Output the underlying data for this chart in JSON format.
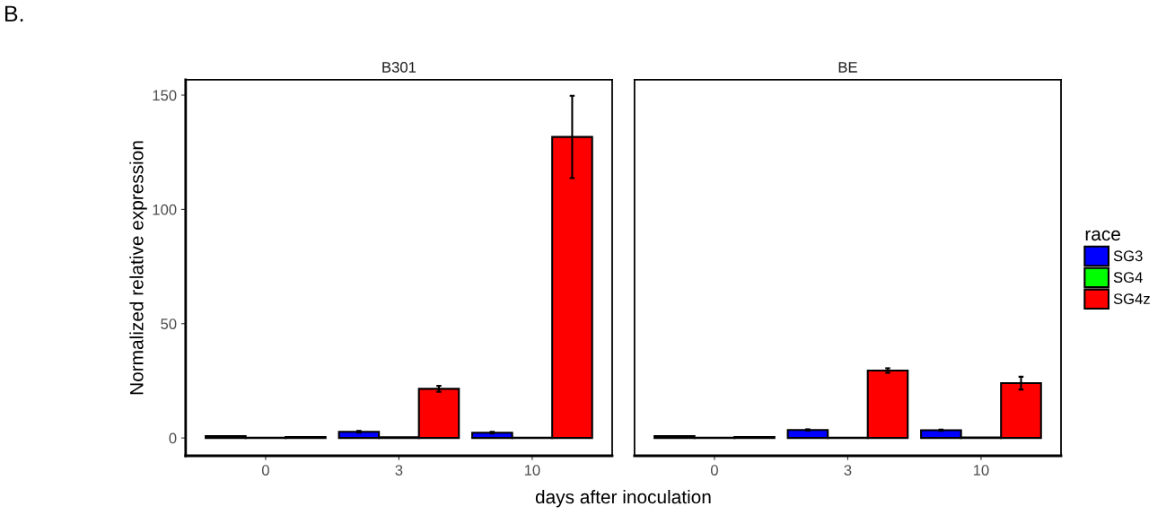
{
  "chart_data": [
    {
      "type": "bar",
      "title": "B301",
      "xlabel": "days after inoculation",
      "ylabel": "Normalized relative expression",
      "annotations": [
        "B."
      ],
      "categories": [
        "0",
        "3",
        "10"
      ],
      "ylim": [
        -7.8,
        156.7
      ],
      "yticks": [
        0,
        50,
        100,
        150
      ],
      "grid": false,
      "legend": "right",
      "legend_title": "race",
      "series": [
        {
          "name": "SG3",
          "color": "#0000ff",
          "values": [
            0.8,
            2.7,
            2.3
          ],
          "errors": [
            null,
            0.4,
            0.4
          ]
        },
        {
          "name": "SG4",
          "color": "#00ff00",
          "values": [
            0.1,
            0.3,
            0.1
          ],
          "errors": [
            null,
            null,
            null
          ]
        },
        {
          "name": "SG4z",
          "color": "#ff0000",
          "values": [
            0.4,
            21.5,
            131.7
          ],
          "errors": [
            null,
            1.3,
            18
          ]
        }
      ]
    },
    {
      "type": "bar",
      "title": "BE",
      "categories": [
        "0",
        "3",
        "10"
      ],
      "ylim": [
        -7.8,
        156.7
      ],
      "yticks": [
        0,
        50,
        100,
        150
      ],
      "tick_labels": "x",
      "grid": false,
      "series": [
        {
          "color": "#0000ff",
          "values": [
            0.8,
            3.5,
            3.4
          ],
          "errors": [
            null,
            0.3,
            0.3
          ]
        },
        {
          "color": "#00ff00",
          "values": [
            0.1,
            0.1,
            0.2
          ],
          "errors": [
            null,
            null,
            null
          ]
        },
        {
          "color": "#ff0000",
          "values": [
            0.4,
            29.5,
            24.0
          ],
          "errors": [
            null,
            1.0,
            2.8
          ]
        }
      ]
    }
  ]
}
